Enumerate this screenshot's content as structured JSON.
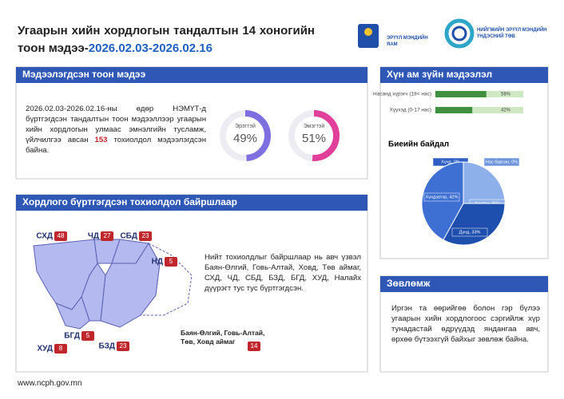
{
  "header": {
    "title": "Угаарын хийн хордлогын тандалтын 14 хоногийн тоон мэдээ-",
    "period": "2026.02.03-2026.02.16",
    "logo_left": "ЭРҮҮЛ МЭНДИЙН ЯАМ",
    "logo_right": "НИЙГМИЙН ЭРҮҮЛ МЭНДИЙН ҮНДЭСНИЙ ТӨВ"
  },
  "summary": {
    "title": "Мэдээлэгдсэн тоон мэдээ",
    "text_before": "2026.02.03-2026.02.16-ны өдөр НЭМҮТ-д бүртгэгдсэн тандалтын тоон мэдээллээр угаарын хийн хордлогын улмаас эмнэлгийн тусламж, үйлчилгээ авсан",
    "count": 153,
    "text_after": "тохиолдол мэдээлэгдсэн байна.",
    "gender": [
      {
        "label": "Эрэгтэй",
        "value": 49,
        "value_label": "49%",
        "color": "#7d6fe0"
      },
      {
        "label": "Эмэгтэй",
        "value": 51,
        "value_label": "51%",
        "color": "#e0409a"
      }
    ]
  },
  "demographics": {
    "title": "Хүн ам зүйн мэдээлэл",
    "age_groups": [
      {
        "label": "Насанд хүрэгч (18< нас)",
        "value": 58,
        "value_label": "58%"
      },
      {
        "label": "Хүүхэд (0-17 нас)",
        "value": 42,
        "value_label": "42%"
      }
    ],
    "condition": {
      "title": "Биеийн байдал",
      "slices": [
        {
          "label": "Хүнд, 0%",
          "value": 0,
          "color": "#2f5fc4"
        },
        {
          "label": "Нас барсан, 0%",
          "value": 0,
          "color": "#6f95dd"
        },
        {
          "label": "Хөнгөн, 25%",
          "value": 25,
          "color": "#8eb0ea"
        },
        {
          "label": "Дунд, 33%",
          "value": 33,
          "color": "#1f4fae"
        },
        {
          "label": "Хүндэвтэр, 42%",
          "value": 42,
          "color": "#3e6fd2"
        }
      ]
    }
  },
  "location": {
    "title": "Хордлого бүртгэгдсэн тохиолдол байршлаар",
    "districts": [
      {
        "name": "СХД",
        "count": 48
      },
      {
        "name": "ЧД",
        "count": 27
      },
      {
        "name": "СБД",
        "count": 23
      },
      {
        "name": "НД",
        "count": 5
      },
      {
        "name": "БГД",
        "count": 5
      },
      {
        "name": "ХУД",
        "count": 8
      },
      {
        "name": "БЗД",
        "count": 23
      }
    ],
    "text": "Нийт тохиолдлыг байршлаар нь авч үзвэл Баян-Өлгий, Говь-Алтай, Ховд, Төв аймаг, СХД, ЧД, СБД, БЗД, БГД, ХУД, Налайх дүүрэгт тус тус бүртгэгдсэн.",
    "provinces": {
      "label": "Баян-Өлгий, Говь-Алтай, Төв, Ховд аймаг",
      "count": 14
    }
  },
  "advice": {
    "title": "Зөвлөмж",
    "text": "Иргэн та өөрийгөө болон гэр бүлээ угаарын хийн хордлогоос сэргийлж хүр тунадастай өдрүүдэд яндангаа авч, өрхөө бүтээхгүй байхыг зөвлөж байна."
  },
  "footer": {
    "url": "www.ncph.gov.mn"
  }
}
